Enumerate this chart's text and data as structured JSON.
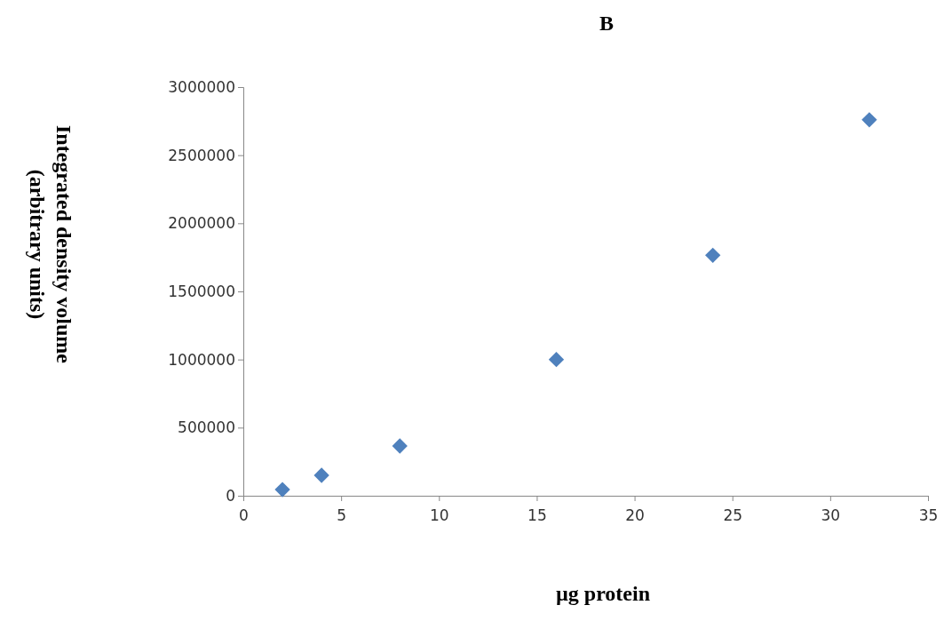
{
  "chart_data": {
    "type": "scatter",
    "title": "B",
    "xlabel": "µg protein",
    "ylabel": "Integrated density volume (arbitrary units)",
    "x": [
      2,
      4,
      8,
      16,
      24,
      32
    ],
    "series": [
      {
        "color": "#4f81bd",
        "values": [
          45000,
          150000,
          365000,
          1000000,
          1765000,
          2760000
        ]
      }
    ],
    "xlim": [
      0,
      35
    ],
    "xticks": [
      0,
      5,
      10,
      15,
      20,
      25,
      30,
      35
    ],
    "ylim": [
      0,
      3000000
    ],
    "yticks": [
      0,
      500000,
      1000000,
      1500000,
      2000000,
      2500000,
      3000000
    ],
    "marker": "diamond",
    "grid": false
  }
}
